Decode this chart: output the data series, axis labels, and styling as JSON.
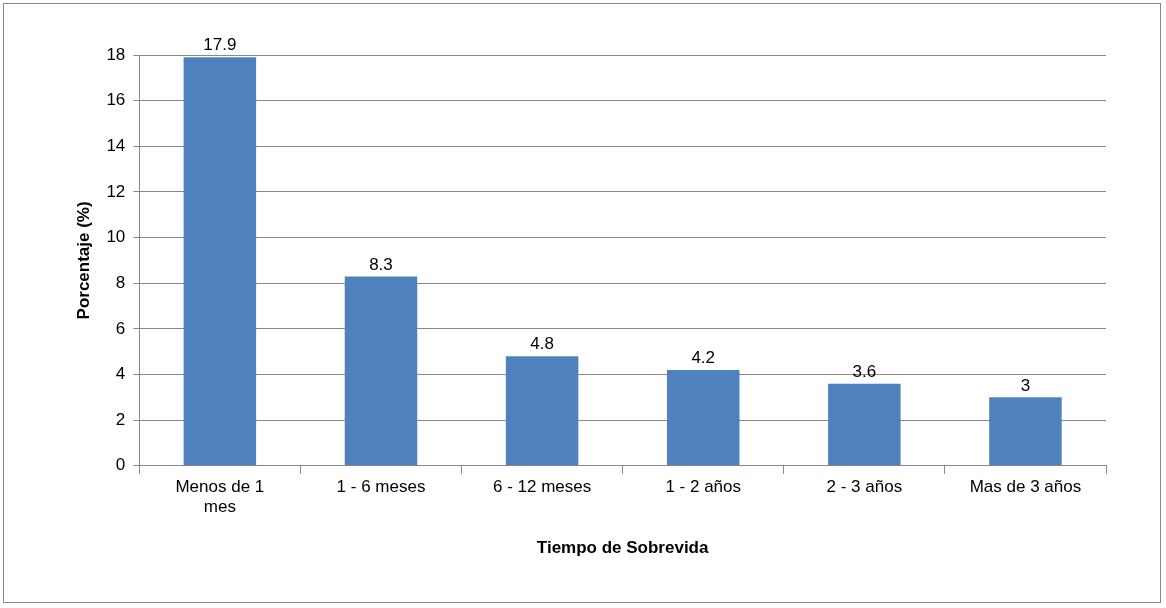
{
  "chart_data": {
    "type": "bar",
    "xlabel": "Tiempo de Sobrevida",
    "ylabel": "Porcentaje (%)",
    "categories": [
      "Menos de 1 mes",
      "1 - 6 meses",
      "6 - 12 meses",
      "1 - 2 años",
      "2 - 3 años",
      "Mas de 3 años"
    ],
    "values": [
      17.9,
      8.3,
      4.8,
      4.2,
      3.6,
      3
    ],
    "color": "#4f81bd",
    "ylim": [
      0,
      18
    ],
    "yticks": [
      0,
      2,
      4,
      6,
      8,
      10,
      12,
      14,
      16,
      18
    ],
    "grid": "y",
    "data_labels": true
  }
}
